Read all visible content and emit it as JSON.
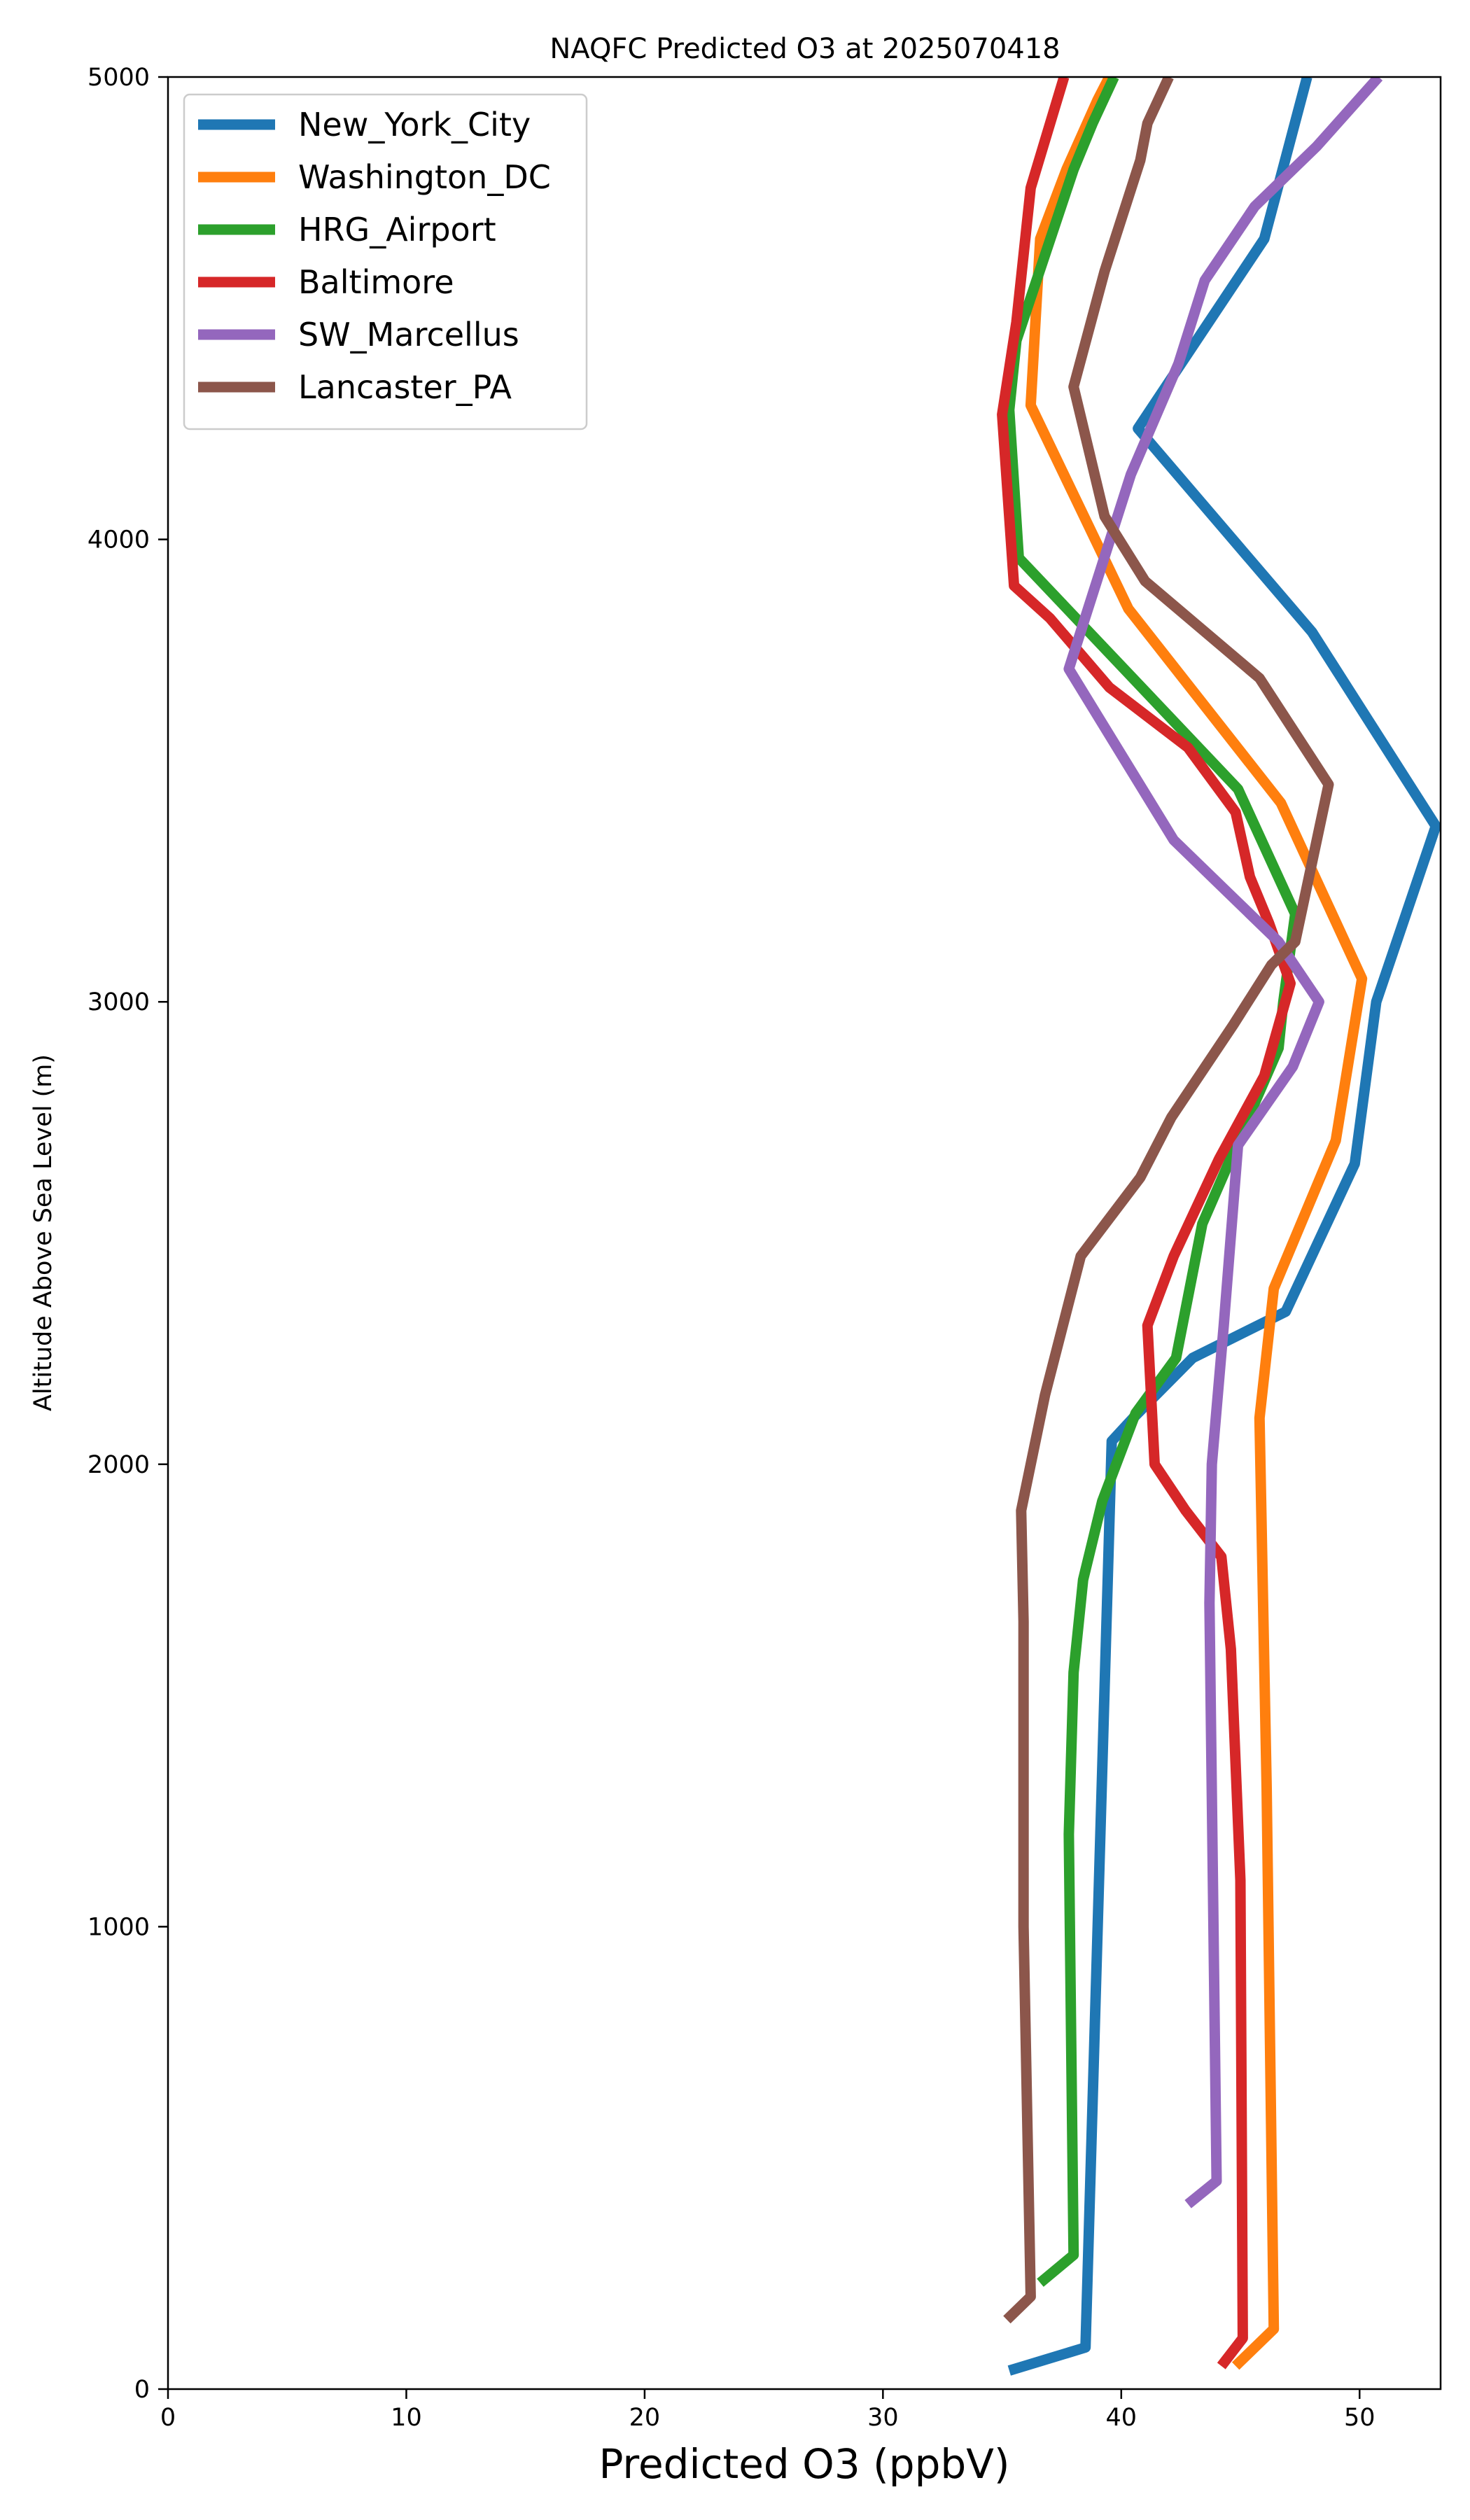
{
  "chart_data": {
    "type": "line",
    "title": "NAQFC Predicted O3 at 2025070418",
    "xlabel": "Predicted O3 (ppbV)",
    "ylabel": "Altitude Above Sea Level (m)",
    "xlim": [
      0,
      53.4
    ],
    "ylim": [
      0,
      5000
    ],
    "xticks": [
      0,
      10,
      20,
      30,
      40,
      50
    ],
    "yticks": [
      0,
      1000,
      2000,
      3000,
      4000,
      5000
    ],
    "grid": false,
    "legend_position": "upper-left",
    "series": [
      {
        "name": "New_York_City",
        "color": "#1f77b4",
        "points": [
          [
            35.3,
            40
          ],
          [
            38.5,
            90
          ],
          [
            39.6,
            2050
          ],
          [
            40.5,
            2100
          ],
          [
            43.0,
            2230
          ],
          [
            46.9,
            2330
          ],
          [
            49.8,
            2650
          ],
          [
            50.7,
            3000
          ],
          [
            53.2,
            3380
          ],
          [
            48.0,
            3800
          ],
          [
            40.7,
            4240
          ],
          [
            46.0,
            4650
          ],
          [
            47.8,
            5000
          ]
        ]
      },
      {
        "name": "Washington_DC",
        "color": "#ff7f0e",
        "points": [
          [
            44.8,
            50
          ],
          [
            46.4,
            130
          ],
          [
            46.1,
            1300
          ],
          [
            45.8,
            2100
          ],
          [
            46.4,
            2380
          ],
          [
            49.0,
            2700
          ],
          [
            50.1,
            3050
          ],
          [
            46.7,
            3430
          ],
          [
            40.3,
            3850
          ],
          [
            36.2,
            4290
          ],
          [
            36.6,
            4650
          ],
          [
            37.7,
            4800
          ],
          [
            39.0,
            4950
          ],
          [
            39.5,
            5000
          ]
        ]
      },
      {
        "name": "HRG_Airport",
        "color": "#2ca02c",
        "points": [
          [
            36.6,
            230
          ],
          [
            38.0,
            290
          ],
          [
            37.8,
            1200
          ],
          [
            38.0,
            1550
          ],
          [
            38.4,
            1750
          ],
          [
            39.2,
            1920
          ],
          [
            40.6,
            2110
          ],
          [
            42.3,
            2230
          ],
          [
            43.4,
            2520
          ],
          [
            46.6,
            2900
          ],
          [
            46.8,
            3000
          ],
          [
            47.3,
            3190
          ],
          [
            44.9,
            3460
          ],
          [
            35.7,
            3960
          ],
          [
            35.3,
            4280
          ],
          [
            35.6,
            4430
          ],
          [
            38.0,
            4800
          ],
          [
            38.8,
            4900
          ],
          [
            39.7,
            5000
          ]
        ]
      },
      {
        "name": "Baltimore",
        "color": "#d62728",
        "points": [
          [
            44.2,
            50
          ],
          [
            45.1,
            110
          ],
          [
            45.0,
            1100
          ],
          [
            44.6,
            1600
          ],
          [
            44.2,
            1800
          ],
          [
            42.7,
            1900
          ],
          [
            41.4,
            2000
          ],
          [
            41.1,
            2300
          ],
          [
            42.2,
            2450
          ],
          [
            44.1,
            2660
          ],
          [
            46.0,
            2840
          ],
          [
            47.1,
            3040
          ],
          [
            46.2,
            3170
          ],
          [
            45.4,
            3270
          ],
          [
            44.8,
            3410
          ],
          [
            42.8,
            3550
          ],
          [
            39.5,
            3680
          ],
          [
            37.0,
            3830
          ],
          [
            35.5,
            3900
          ],
          [
            35.0,
            4270
          ],
          [
            35.6,
            4470
          ],
          [
            36.2,
            4760
          ],
          [
            37.6,
            5000
          ]
        ]
      },
      {
        "name": "SW_Marcellus",
        "color": "#9467bd",
        "points": [
          [
            42.8,
            400
          ],
          [
            44.0,
            450
          ],
          [
            43.7,
            1700
          ],
          [
            43.8,
            2000
          ],
          [
            44.3,
            2300
          ],
          [
            44.9,
            2690
          ],
          [
            47.2,
            2860
          ],
          [
            48.3,
            3000
          ],
          [
            46.6,
            3130
          ],
          [
            42.2,
            3350
          ],
          [
            37.8,
            3720
          ],
          [
            40.4,
            4140
          ],
          [
            42.4,
            4380
          ],
          [
            43.5,
            4560
          ],
          [
            45.6,
            4720
          ],
          [
            48.2,
            4850
          ],
          [
            50.8,
            5000
          ]
        ]
      },
      {
        "name": "Lancaster_PA",
        "color": "#8c564b",
        "points": [
          [
            35.2,
            150
          ],
          [
            36.2,
            200
          ],
          [
            35.9,
            1000
          ],
          [
            35.9,
            1660
          ],
          [
            35.8,
            1900
          ],
          [
            36.8,
            2150
          ],
          [
            38.3,
            2450
          ],
          [
            40.8,
            2620
          ],
          [
            42.1,
            2750
          ],
          [
            44.7,
            2950
          ],
          [
            46.3,
            3080
          ],
          [
            47.3,
            3130
          ],
          [
            48.7,
            3470
          ],
          [
            45.8,
            3700
          ],
          [
            41.0,
            3910
          ],
          [
            39.3,
            4050
          ],
          [
            38.0,
            4330
          ],
          [
            39.3,
            4580
          ],
          [
            40.8,
            4820
          ],
          [
            41.1,
            4900
          ],
          [
            42.0,
            5000
          ]
        ]
      }
    ]
  }
}
